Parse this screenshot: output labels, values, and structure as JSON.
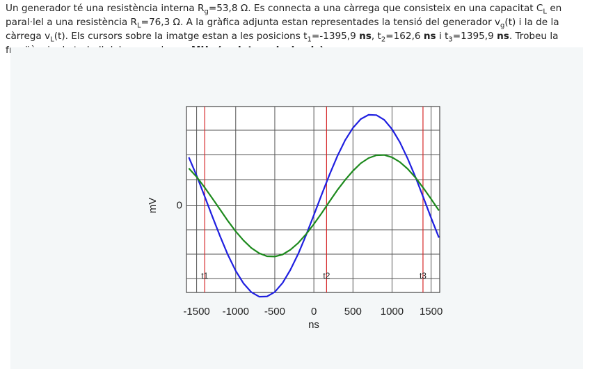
{
  "question": [
    "Un generador té una resistència interna R",
    "g",
    "=53,8 Ω. Es connecta a una càrrega que consisteix en una capacitat C",
    "L",
    " en paral·lel a una resistència R",
    "L",
    "=76,3 Ω. A la gràfica adjunta estan representades la tensió del generador v",
    "g",
    "(t) i la de la càrrega v",
    "L",
    "(t). Els cursors sobre la imatge estan a les posicions t",
    "1",
    "=-1395,9 ",
    "ns",
    ", t",
    "2",
    "=162,6 ",
    "ns",
    " i t",
    "3",
    "=1395,9 ",
    "ns",
    ". Trobeu la freqüència de treball del generador en ",
    "MHz (amb tres decimals)",
    "."
  ],
  "chart_data": {
    "type": "line",
    "x_label": "ns",
    "y_label": "mV",
    "x": [
      -1600,
      -1500,
      -1400,
      -1300,
      -1200,
      -1100,
      -1000,
      -900,
      -800,
      -700,
      -600,
      -500,
      -400,
      -300,
      -200,
      -100,
      0,
      100,
      200,
      300,
      400,
      500,
      600,
      700,
      800,
      900,
      1000,
      1100,
      1200,
      1300,
      1400,
      1500,
      1600
    ],
    "series": [
      {
        "name": "vg",
        "color": "#1f1fe0",
        "values": [
          1.93,
          1.2,
          0.4,
          -0.42,
          -1.21,
          -1.95,
          -2.59,
          -3.09,
          -3.44,
          -3.62,
          -3.61,
          -3.43,
          -3.07,
          -2.55,
          -1.91,
          -1.17,
          -0.37,
          0.45,
          1.24,
          1.97,
          2.61,
          3.1,
          3.45,
          3.62,
          3.61,
          3.42,
          3.05,
          2.53,
          1.88,
          1.14,
          0.34,
          -0.48,
          -1.27
        ]
      },
      {
        "name": "vL",
        "color": "#1e8a1e",
        "values": [
          1.49,
          1.15,
          0.74,
          0.3,
          -0.15,
          -0.6,
          -1.02,
          -1.38,
          -1.68,
          -1.89,
          -2.01,
          -2.02,
          -1.94,
          -1.75,
          -1.48,
          -1.13,
          -0.73,
          -0.29,
          0.17,
          0.62,
          1.03,
          1.39,
          1.69,
          1.9,
          2.01,
          2.02,
          1.93,
          1.74,
          1.47,
          1.12,
          0.71,
          0.27,
          -0.19
        ]
      }
    ],
    "cursors": [
      {
        "label": "t1",
        "value": -1395.9
      },
      {
        "label": "t2",
        "value": 162.6
      },
      {
        "label": "t3",
        "value": 1395.9
      }
    ],
    "cursor_color": "#d62728",
    "xlim": [
      -1630,
      1610
    ],
    "xticks": [
      -1500,
      -1000,
      -500,
      0,
      500,
      1000,
      1500
    ],
    "ylim": [
      -3.45,
      3.95
    ],
    "yticks": [
      0
    ],
    "grid": true
  }
}
